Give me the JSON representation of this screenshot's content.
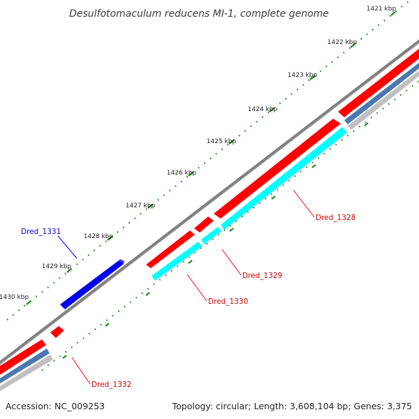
{
  "title": "Desulfotomaculum reducens MI-1, complete genome",
  "footer": {
    "accession": "Accession: NC_009253",
    "summary": "Topology: circular; Length: 3,608,104 bp; Genes: 3,375"
  },
  "colors": {
    "forward_gene": "#ff0000",
    "reverse_gene": "#0000ee",
    "cds_cyan": "#00ffff",
    "backbone": "#808080",
    "tick": "#228b22",
    "steel": "#4a78b0",
    "light_track": "#c0c0c0"
  },
  "ticks": [
    {
      "label": "1421 kbp"
    },
    {
      "label": "1422 kbp"
    },
    {
      "label": "1423 kbp"
    },
    {
      "label": "1424 kbp"
    },
    {
      "label": "1425 kbp"
    },
    {
      "label": "1426 kbp"
    },
    {
      "label": "1427 kbp"
    },
    {
      "label": "1428 kbp"
    },
    {
      "label": "1429 kbp"
    },
    {
      "label": "1430 kbp"
    }
  ],
  "genes": [
    {
      "name": "Dred_1328",
      "strand": "forward"
    },
    {
      "name": "Dred_1329",
      "strand": "forward"
    },
    {
      "name": "Dred_1330",
      "strand": "forward"
    },
    {
      "name": "Dred_1331",
      "strand": "reverse"
    },
    {
      "name": "Dred_1332",
      "strand": "forward"
    }
  ]
}
